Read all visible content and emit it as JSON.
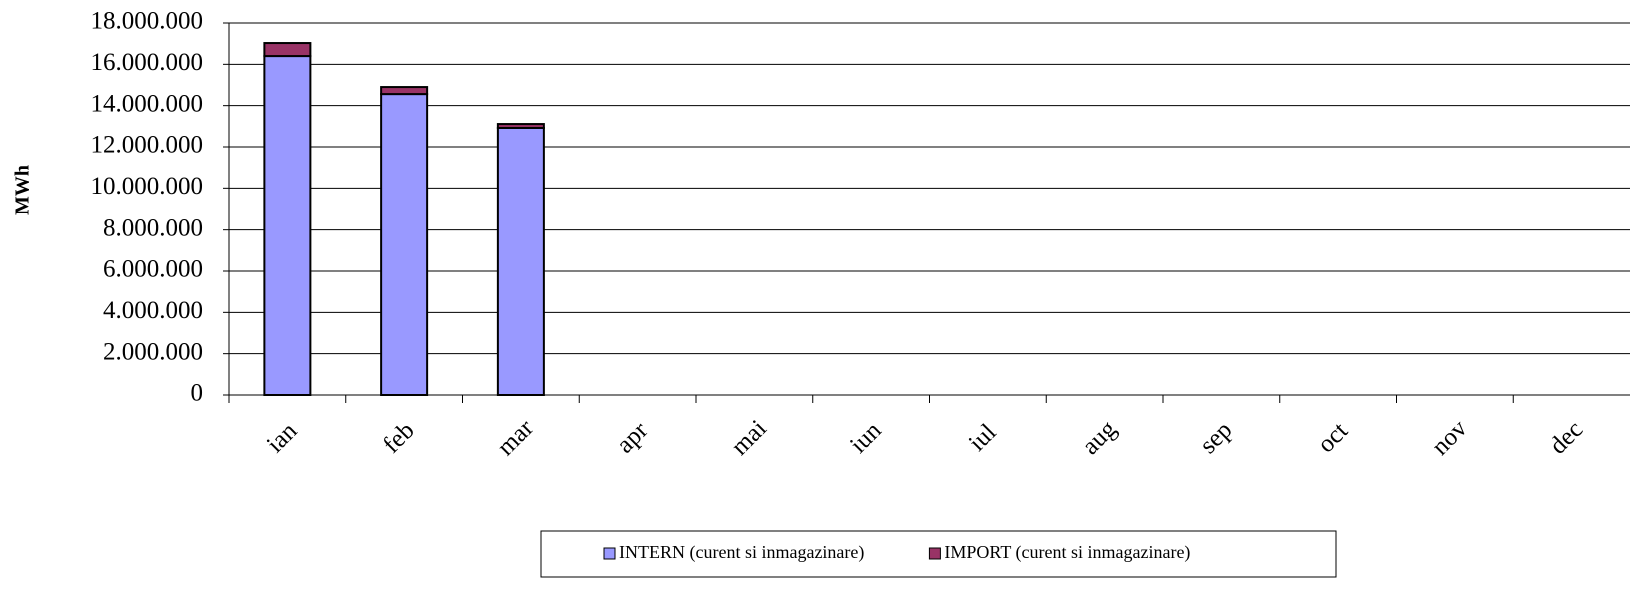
{
  "chart_data": {
    "type": "stacked_bar",
    "y_label": "MWh",
    "categories": [
      "ian",
      "feb",
      "mar",
      "apr",
      "mai",
      "iun",
      "iul",
      "aug",
      "sep",
      "oct",
      "nov",
      "dec"
    ],
    "series": [
      {
        "name": "INTERN (curent si inmagazinare)",
        "color": "#9999ff",
        "values": [
          16400000,
          14560000,
          12920000,
          null,
          null,
          null,
          null,
          null,
          null,
          null,
          null,
          null
        ]
      },
      {
        "name": "IMPORT (curent si inmagazinare)",
        "color": "#993366",
        "values": [
          630000,
          340000,
          190000,
          null,
          null,
          null,
          null,
          null,
          null,
          null,
          null,
          null
        ]
      }
    ],
    "ylim": [
      0,
      18000000
    ],
    "yticks": [
      0,
      {
        "value": 2000000,
        "label": "2.000.000"
      },
      {
        "value": 4000000,
        "label": "4.000.000"
      },
      {
        "value": 6000000,
        "label": "6.000.000"
      },
      {
        "value": 8000000,
        "label": "8.000.000"
      },
      {
        "value": 10000000,
        "label": "10.000.000"
      },
      {
        "value": 12000000,
        "label": "12.000.000"
      },
      {
        "value": 14000000,
        "label": "14.000.000"
      },
      {
        "value": 16000000,
        "label": "16.000.000"
      },
      {
        "value": 18000000,
        "label": "18.000.000"
      }
    ],
    "grid": true,
    "legend": "bottom"
  }
}
